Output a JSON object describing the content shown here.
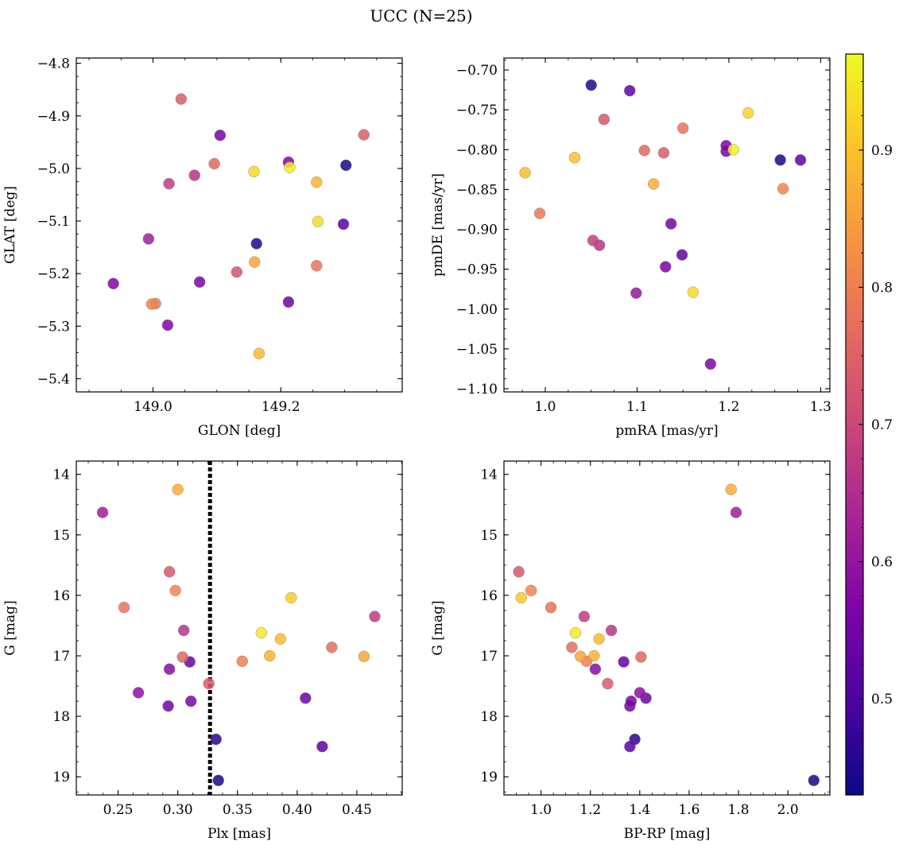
{
  "figure": {
    "title": "UCC (N=25)",
    "colorbar": {
      "colormap": "plasma",
      "range": [
        0.43,
        0.97
      ],
      "ticks": [
        0.5,
        0.6,
        0.7,
        0.8,
        0.9
      ],
      "tick_labels": [
        "0.5",
        "0.6",
        "0.7",
        "0.8",
        "0.9"
      ]
    }
  },
  "chart_data": [
    {
      "type": "scatter",
      "id": "glon-glat",
      "title": "",
      "xlabel": "GLON [deg]",
      "ylabel": "GLAT [deg]",
      "xlim": [
        148.88,
        149.39
      ],
      "ylim": [
        -5.425,
        -4.79
      ],
      "x_ticks": [
        149.0,
        149.2
      ],
      "x_tick_labels": [
        "149.0",
        "149.2"
      ],
      "y_ticks": [
        -4.8,
        -4.9,
        -5.0,
        -5.1,
        -5.2,
        -5.3,
        -5.4
      ],
      "y_tick_labels": [
        "−4.8",
        "−4.9",
        "−5.0",
        "−5.1",
        "−5.2",
        "−5.3",
        "−5.4"
      ],
      "grid": false,
      "points": [
        {
          "x": 149.044,
          "y": -4.868,
          "c": 0.74
        },
        {
          "x": 149.105,
          "y": -4.937,
          "c": 0.55
        },
        {
          "x": 149.33,
          "y": -4.936,
          "c": 0.74
        },
        {
          "x": 149.212,
          "y": -4.988,
          "c": 0.57
        },
        {
          "x": 149.214,
          "y": -4.998,
          "c": 0.96
        },
        {
          "x": 149.096,
          "y": -4.991,
          "c": 0.76
        },
        {
          "x": 149.158,
          "y": -5.006,
          "c": 0.93
        },
        {
          "x": 149.065,
          "y": -5.013,
          "c": 0.66
        },
        {
          "x": 149.302,
          "y": -4.994,
          "c": 0.44
        },
        {
          "x": 149.025,
          "y": -5.029,
          "c": 0.68
        },
        {
          "x": 149.256,
          "y": -5.026,
          "c": 0.88
        },
        {
          "x": 149.258,
          "y": -5.101,
          "c": 0.93
        },
        {
          "x": 149.298,
          "y": -5.106,
          "c": 0.52
        },
        {
          "x": 148.993,
          "y": -5.134,
          "c": 0.62
        },
        {
          "x": 149.162,
          "y": -5.143,
          "c": 0.45
        },
        {
          "x": 149.159,
          "y": -5.178,
          "c": 0.86
        },
        {
          "x": 149.256,
          "y": -5.185,
          "c": 0.78
        },
        {
          "x": 149.131,
          "y": -5.197,
          "c": 0.72
        },
        {
          "x": 148.938,
          "y": -5.219,
          "c": 0.57
        },
        {
          "x": 149.073,
          "y": -5.216,
          "c": 0.56
        },
        {
          "x": 149.212,
          "y": -5.254,
          "c": 0.54
        },
        {
          "x": 148.998,
          "y": -5.258,
          "c": 0.81
        },
        {
          "x": 149.004,
          "y": -5.257,
          "c": 0.79
        },
        {
          "x": 149.023,
          "y": -5.298,
          "c": 0.57
        },
        {
          "x": 149.166,
          "y": -5.352,
          "c": 0.89
        }
      ]
    },
    {
      "type": "scatter",
      "id": "pmra-pmde",
      "title": "",
      "xlabel": "pmRA [mas/yr]",
      "ylabel": "pmDE [mas/yr]",
      "xlim": [
        0.955,
        1.31
      ],
      "ylim": [
        -1.104,
        -0.685
      ],
      "x_ticks": [
        1.0,
        1.1,
        1.2,
        1.3
      ],
      "x_tick_labels": [
        "1.0",
        "1.1",
        "1.2",
        "1.3"
      ],
      "y_ticks": [
        -0.7,
        -0.75,
        -0.8,
        -0.85,
        -0.9,
        -0.95,
        -1.0,
        -1.05,
        -1.1
      ],
      "y_tick_labels": [
        "−0.70",
        "−0.75",
        "−0.80",
        "−0.85",
        "−0.90",
        "−0.95",
        "−1.00",
        "−1.05",
        "−1.10"
      ],
      "grid": false,
      "points": [
        {
          "x": 1.05,
          "y": -0.719,
          "c": 0.45
        },
        {
          "x": 1.092,
          "y": -0.726,
          "c": 0.52
        },
        {
          "x": 1.064,
          "y": -0.762,
          "c": 0.73
        },
        {
          "x": 1.221,
          "y": -0.754,
          "c": 0.92
        },
        {
          "x": 1.15,
          "y": -0.773,
          "c": 0.78
        },
        {
          "x": 1.197,
          "y": -0.795,
          "c": 0.57
        },
        {
          "x": 1.197,
          "y": -0.802,
          "c": 0.55
        },
        {
          "x": 1.205,
          "y": -0.8,
          "c": 0.96
        },
        {
          "x": 1.108,
          "y": -0.801,
          "c": 0.76
        },
        {
          "x": 1.129,
          "y": -0.804,
          "c": 0.74
        },
        {
          "x": 1.032,
          "y": -0.81,
          "c": 0.9
        },
        {
          "x": 1.256,
          "y": -0.813,
          "c": 0.44
        },
        {
          "x": 1.278,
          "y": -0.813,
          "c": 0.52
        },
        {
          "x": 0.978,
          "y": -0.829,
          "c": 0.89
        },
        {
          "x": 1.118,
          "y": -0.843,
          "c": 0.87
        },
        {
          "x": 1.259,
          "y": -0.849,
          "c": 0.81
        },
        {
          "x": 0.994,
          "y": -0.88,
          "c": 0.79
        },
        {
          "x": 1.137,
          "y": -0.893,
          "c": 0.55
        },
        {
          "x": 1.052,
          "y": -0.914,
          "c": 0.68
        },
        {
          "x": 1.059,
          "y": -0.92,
          "c": 0.66
        },
        {
          "x": 1.149,
          "y": -0.932,
          "c": 0.53
        },
        {
          "x": 1.131,
          "y": -0.947,
          "c": 0.56
        },
        {
          "x": 1.099,
          "y": -0.98,
          "c": 0.6
        },
        {
          "x": 1.161,
          "y": -0.979,
          "c": 0.93
        },
        {
          "x": 1.18,
          "y": -1.069,
          "c": 0.57
        }
      ]
    },
    {
      "type": "scatter",
      "id": "plx-g",
      "title": "",
      "xlabel": "Plx [mas]",
      "ylabel": "G [mag]",
      "xlim": [
        0.215,
        0.488
      ],
      "ylim": [
        19.3,
        13.78
      ],
      "y_inverted": true,
      "x_ticks": [
        0.25,
        0.3,
        0.35,
        0.4,
        0.45
      ],
      "x_tick_labels": [
        "0.25",
        "0.30",
        "0.35",
        "0.40",
        "0.45"
      ],
      "y_ticks": [
        14,
        15,
        16,
        17,
        18,
        19
      ],
      "y_tick_labels": [
        "14",
        "15",
        "16",
        "17",
        "18",
        "19"
      ],
      "grid": false,
      "vline": {
        "x": 0.327,
        "style": "dotted",
        "color": "#000000"
      },
      "points": [
        {
          "x": 0.3,
          "y": 14.25,
          "c": 0.87
        },
        {
          "x": 0.237,
          "y": 14.63,
          "c": 0.62
        },
        {
          "x": 0.293,
          "y": 15.61,
          "c": 0.73
        },
        {
          "x": 0.298,
          "y": 15.92,
          "c": 0.81
        },
        {
          "x": 0.255,
          "y": 16.2,
          "c": 0.78
        },
        {
          "x": 0.395,
          "y": 16.04,
          "c": 0.91
        },
        {
          "x": 0.465,
          "y": 16.35,
          "c": 0.68
        },
        {
          "x": 0.305,
          "y": 16.58,
          "c": 0.66
        },
        {
          "x": 0.37,
          "y": 16.62,
          "c": 0.95
        },
        {
          "x": 0.386,
          "y": 16.72,
          "c": 0.89
        },
        {
          "x": 0.429,
          "y": 16.86,
          "c": 0.77
        },
        {
          "x": 0.456,
          "y": 17.01,
          "c": 0.86
        },
        {
          "x": 0.377,
          "y": 17.0,
          "c": 0.88
        },
        {
          "x": 0.304,
          "y": 17.02,
          "c": 0.76
        },
        {
          "x": 0.354,
          "y": 17.09,
          "c": 0.8
        },
        {
          "x": 0.31,
          "y": 17.1,
          "c": 0.53
        },
        {
          "x": 0.293,
          "y": 17.22,
          "c": 0.58
        },
        {
          "x": 0.326,
          "y": 17.46,
          "c": 0.74
        },
        {
          "x": 0.267,
          "y": 17.61,
          "c": 0.59
        },
        {
          "x": 0.311,
          "y": 17.75,
          "c": 0.56
        },
        {
          "x": 0.407,
          "y": 17.7,
          "c": 0.54
        },
        {
          "x": 0.292,
          "y": 17.83,
          "c": 0.55
        },
        {
          "x": 0.332,
          "y": 18.38,
          "c": 0.46
        },
        {
          "x": 0.421,
          "y": 18.5,
          "c": 0.52
        },
        {
          "x": 0.334,
          "y": 19.06,
          "c": 0.44
        }
      ]
    },
    {
      "type": "scatter",
      "id": "bprp-g",
      "title": "",
      "xlabel": "BP-RP [mag]",
      "ylabel": "G [mag]",
      "xlim": [
        0.85,
        2.17
      ],
      "ylim": [
        19.3,
        13.78
      ],
      "y_inverted": true,
      "x_ticks": [
        1.0,
        1.2,
        1.4,
        1.6,
        1.8,
        2.0
      ],
      "x_tick_labels": [
        "1.0",
        "1.2",
        "1.4",
        "1.6",
        "1.8",
        "2.0"
      ],
      "y_ticks": [
        14,
        15,
        16,
        17,
        18,
        19
      ],
      "y_tick_labels": [
        "14",
        "15",
        "16",
        "17",
        "18",
        "19"
      ],
      "grid": false,
      "points": [
        {
          "x": 1.77,
          "y": 14.25,
          "c": 0.87
        },
        {
          "x": 1.79,
          "y": 14.63,
          "c": 0.62
        },
        {
          "x": 0.91,
          "y": 15.61,
          "c": 0.73
        },
        {
          "x": 0.96,
          "y": 15.92,
          "c": 0.81
        },
        {
          "x": 0.92,
          "y": 16.04,
          "c": 0.91
        },
        {
          "x": 1.04,
          "y": 16.2,
          "c": 0.78
        },
        {
          "x": 1.175,
          "y": 16.35,
          "c": 0.68
        },
        {
          "x": 1.285,
          "y": 16.58,
          "c": 0.66
        },
        {
          "x": 1.14,
          "y": 16.62,
          "c": 0.95
        },
        {
          "x": 1.235,
          "y": 16.72,
          "c": 0.89
        },
        {
          "x": 1.125,
          "y": 16.86,
          "c": 0.77
        },
        {
          "x": 1.16,
          "y": 17.01,
          "c": 0.86
        },
        {
          "x": 1.215,
          "y": 17.0,
          "c": 0.88
        },
        {
          "x": 1.405,
          "y": 17.02,
          "c": 0.76
        },
        {
          "x": 1.185,
          "y": 17.09,
          "c": 0.8
        },
        {
          "x": 1.335,
          "y": 17.1,
          "c": 0.53
        },
        {
          "x": 1.22,
          "y": 17.22,
          "c": 0.58
        },
        {
          "x": 1.27,
          "y": 17.46,
          "c": 0.74
        },
        {
          "x": 1.4,
          "y": 17.61,
          "c": 0.59
        },
        {
          "x": 1.365,
          "y": 17.75,
          "c": 0.56
        },
        {
          "x": 1.425,
          "y": 17.7,
          "c": 0.54
        },
        {
          "x": 1.36,
          "y": 17.83,
          "c": 0.55
        },
        {
          "x": 1.38,
          "y": 18.38,
          "c": 0.46
        },
        {
          "x": 1.36,
          "y": 18.5,
          "c": 0.52
        },
        {
          "x": 2.105,
          "y": 19.06,
          "c": 0.44
        }
      ]
    }
  ]
}
